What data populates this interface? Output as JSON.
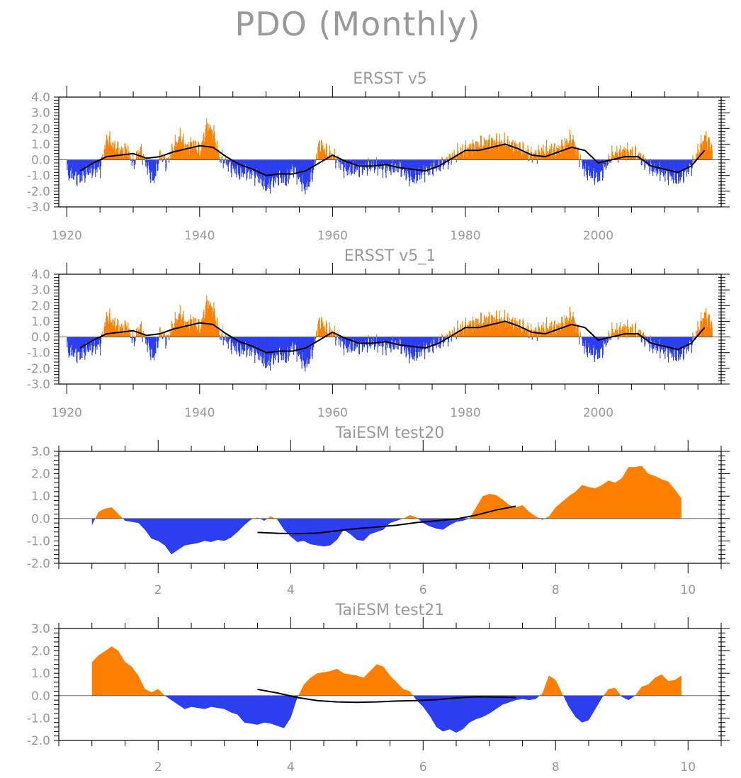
{
  "figure": {
    "title": "PDO (Monthly)",
    "colors": {
      "positive": "#ff8000",
      "negative": "#2b3ff0",
      "line": "#000000",
      "axis": "#000000",
      "text": "#999999"
    }
  },
  "chart_data": [
    {
      "type": "area",
      "title": "ERSST v5",
      "xlim": [
        1918.8,
        2018.5
      ],
      "ylim": [
        -3.0,
        4.0
      ],
      "xticks": [
        1920,
        1940,
        1960,
        1980,
        2000
      ],
      "xtick_labels": [
        "1920",
        "1940",
        "1960",
        "1980",
        "2000"
      ],
      "yticks": [
        -3.0,
        -2.0,
        -1.0,
        0.0,
        1.0,
        2.0,
        3.0,
        4.0
      ],
      "ytick_labels": [
        "-3.0",
        "-2.0",
        "-1.0",
        "0.0",
        "1.0",
        "2.0",
        "3.0",
        "4.0"
      ],
      "bars_anchor": {
        "x": [
          1920,
          1922,
          1923,
          1924,
          1925,
          1926,
          1927,
          1928,
          1929,
          1930,
          1931,
          1932,
          1933,
          1934,
          1935,
          1936,
          1937,
          1938,
          1939,
          1940,
          1941,
          1942,
          1943,
          1944,
          1945,
          1946,
          1947,
          1948,
          1949,
          1950,
          1951,
          1952,
          1953,
          1954,
          1955,
          1956,
          1957,
          1958,
          1959,
          1960,
          1962,
          1964,
          1966,
          1968,
          1970,
          1972,
          1974,
          1976,
          1978,
          1980,
          1982,
          1984,
          1986,
          1988,
          1990,
          1992,
          1994,
          1996,
          1998,
          2000,
          2002,
          2004,
          2006,
          2008,
          2010,
          2012,
          2014,
          2016,
          2018
        ],
        "y": [
          -0.9,
          -1.2,
          -0.8,
          -0.7,
          -0.5,
          1.4,
          0.9,
          0.6,
          0.7,
          -0.3,
          0.7,
          -0.4,
          -1.4,
          0.3,
          -0.2,
          0.8,
          1.5,
          0.8,
          1.1,
          0.5,
          2.2,
          1.8,
          0.1,
          -0.2,
          -0.6,
          -0.9,
          -0.8,
          -0.9,
          -1.2,
          -1.8,
          -1.4,
          -1.1,
          -1.4,
          -0.5,
          -1.3,
          -1.9,
          -0.8,
          1.1,
          0.5,
          0.3,
          -0.7,
          -0.6,
          -0.4,
          -0.6,
          -0.5,
          -1.3,
          -0.7,
          -0.4,
          0.2,
          0.7,
          1.0,
          1.2,
          1.1,
          0.8,
          0.3,
          0.6,
          0.7,
          1.4,
          -0.8,
          -1.2,
          0.3,
          0.6,
          0.3,
          -0.6,
          -0.9,
          -1.3,
          -0.4,
          1.5,
          0.3
        ]
      },
      "smooth": {
        "x": [
          1922,
          1924,
          1926,
          1928,
          1930,
          1932,
          1934,
          1936,
          1938,
          1940,
          1942,
          1944,
          1946,
          1948,
          1950,
          1952,
          1954,
          1956,
          1958,
          1960,
          1962,
          1964,
          1966,
          1968,
          1970,
          1972,
          1974,
          1976,
          1978,
          1980,
          1982,
          1984,
          1986,
          1988,
          1990,
          1992,
          1994,
          1996,
          1998,
          2000,
          2002,
          2004,
          2006,
          2008,
          2010,
          2012,
          2014,
          2016
        ],
        "y": [
          -0.7,
          -0.2,
          0.2,
          0.3,
          0.4,
          0.1,
          0.2,
          0.5,
          0.7,
          0.9,
          0.8,
          0.2,
          -0.3,
          -0.6,
          -1.0,
          -0.9,
          -0.9,
          -0.7,
          -0.2,
          0.3,
          -0.1,
          -0.4,
          -0.4,
          -0.3,
          -0.5,
          -0.6,
          -0.7,
          -0.4,
          0.1,
          0.6,
          0.6,
          0.8,
          1.0,
          0.7,
          0.3,
          0.2,
          0.5,
          0.8,
          0.6,
          -0.2,
          0.0,
          0.2,
          0.2,
          -0.4,
          -0.6,
          -0.8,
          -0.4,
          0.6
        ]
      }
    },
    {
      "type": "area",
      "title": "ERSST v5_1",
      "xlim": [
        1918.8,
        2018.5
      ],
      "ylim": [
        -3.0,
        4.0
      ],
      "xticks": [
        1920,
        1940,
        1960,
        1980,
        2000
      ],
      "xtick_labels": [
        "1920",
        "1940",
        "1960",
        "1980",
        "2000"
      ],
      "yticks": [
        -3.0,
        -2.0,
        -1.0,
        0.0,
        1.0,
        2.0,
        3.0,
        4.0
      ],
      "ytick_labels": [
        "-3.0",
        "-2.0",
        "-1.0",
        "0.0",
        "1.0",
        "2.0",
        "3.0",
        "4.0"
      ],
      "bars_anchor": {
        "x": [
          1920,
          1922,
          1923,
          1924,
          1925,
          1926,
          1927,
          1928,
          1929,
          1930,
          1931,
          1932,
          1933,
          1934,
          1935,
          1936,
          1937,
          1938,
          1939,
          1940,
          1941,
          1942,
          1943,
          1944,
          1945,
          1946,
          1947,
          1948,
          1949,
          1950,
          1951,
          1952,
          1953,
          1954,
          1955,
          1956,
          1957,
          1958,
          1959,
          1960,
          1962,
          1964,
          1966,
          1968,
          1970,
          1972,
          1974,
          1976,
          1978,
          1980,
          1982,
          1984,
          1986,
          1988,
          1990,
          1992,
          1994,
          1996,
          1998,
          2000,
          2002,
          2004,
          2006,
          2008,
          2010,
          2012,
          2014,
          2016,
          2018
        ],
        "y": [
          -0.9,
          -1.2,
          -0.8,
          -0.7,
          -0.5,
          1.4,
          0.9,
          0.6,
          0.7,
          -0.3,
          0.7,
          -0.4,
          -1.4,
          0.3,
          -0.2,
          0.8,
          1.5,
          0.8,
          1.1,
          0.5,
          2.2,
          1.8,
          0.1,
          -0.2,
          -0.6,
          -0.9,
          -0.8,
          -0.9,
          -1.2,
          -1.8,
          -1.4,
          -1.1,
          -1.4,
          -0.5,
          -1.3,
          -1.9,
          -0.8,
          1.1,
          0.5,
          0.3,
          -0.7,
          -0.6,
          -0.4,
          -0.6,
          -0.5,
          -1.3,
          -0.7,
          -0.4,
          0.2,
          0.7,
          1.0,
          1.2,
          1.1,
          0.8,
          0.3,
          0.6,
          0.7,
          1.4,
          -0.8,
          -1.2,
          0.3,
          0.6,
          0.3,
          -0.6,
          -0.9,
          -1.3,
          -0.4,
          1.5,
          0.3
        ]
      },
      "smooth": {
        "x": [
          1922,
          1924,
          1926,
          1928,
          1930,
          1932,
          1934,
          1936,
          1938,
          1940,
          1942,
          1944,
          1946,
          1948,
          1950,
          1952,
          1954,
          1956,
          1958,
          1960,
          1962,
          1964,
          1966,
          1968,
          1970,
          1972,
          1974,
          1976,
          1978,
          1980,
          1982,
          1984,
          1986,
          1988,
          1990,
          1992,
          1994,
          1996,
          1998,
          2000,
          2002,
          2004,
          2006,
          2008,
          2010,
          2012,
          2014,
          2016
        ],
        "y": [
          -0.7,
          -0.2,
          0.2,
          0.3,
          0.4,
          0.1,
          0.2,
          0.5,
          0.7,
          0.9,
          0.8,
          0.2,
          -0.3,
          -0.6,
          -1.0,
          -0.9,
          -0.9,
          -0.7,
          -0.2,
          0.3,
          -0.1,
          -0.4,
          -0.4,
          -0.3,
          -0.5,
          -0.6,
          -0.7,
          -0.4,
          0.1,
          0.6,
          0.6,
          0.8,
          1.0,
          0.7,
          0.3,
          0.2,
          0.5,
          0.8,
          0.6,
          -0.2,
          0.0,
          0.2,
          0.2,
          -0.4,
          -0.6,
          -0.8,
          -0.4,
          0.6
        ]
      }
    },
    {
      "type": "area",
      "title": "TaiESM test20",
      "xlim": [
        0.5,
        10.5
      ],
      "ylim": [
        -2.0,
        3.0
      ],
      "xticks": [
        2,
        4,
        6,
        8,
        10
      ],
      "xtick_labels": [
        "2",
        "4",
        "6",
        "8",
        "10"
      ],
      "yticks": [
        -2.0,
        -1.0,
        0.0,
        1.0,
        2.0,
        3.0
      ],
      "ytick_labels": [
        "-2.0",
        "-1.0",
        "0.0",
        "1.0",
        "2.0",
        "3.0"
      ],
      "x": [
        1.0,
        1.1,
        1.2,
        1.3,
        1.4,
        1.5,
        1.6,
        1.7,
        1.8,
        1.9,
        2.0,
        2.1,
        2.2,
        2.3,
        2.4,
        2.5,
        2.6,
        2.7,
        2.8,
        2.9,
        3.0,
        3.1,
        3.2,
        3.3,
        3.4,
        3.5,
        3.6,
        3.7,
        3.8,
        3.9,
        4.0,
        4.1,
        4.2,
        4.3,
        4.4,
        4.5,
        4.6,
        4.7,
        4.8,
        4.9,
        5.0,
        5.1,
        5.2,
        5.3,
        5.4,
        5.5,
        5.6,
        5.7,
        5.8,
        5.9,
        6.0,
        6.1,
        6.2,
        6.3,
        6.4,
        6.5,
        6.6,
        6.7,
        6.8,
        6.9,
        7.0,
        7.1,
        7.2,
        7.3,
        7.4,
        7.5,
        7.6,
        7.7,
        7.8,
        7.9,
        8.0,
        8.1,
        8.2,
        8.3,
        8.4,
        8.5,
        8.6,
        8.7,
        8.8,
        8.9,
        9.0,
        9.1,
        9.2,
        9.3,
        9.4,
        9.5,
        9.6,
        9.7,
        9.8,
        9.9
      ],
      "y": [
        -0.3,
        0.3,
        0.45,
        0.5,
        0.2,
        -0.1,
        -0.15,
        -0.2,
        -0.5,
        -0.9,
        -1.0,
        -1.2,
        -1.6,
        -1.4,
        -1.2,
        -1.15,
        -1.1,
        -1.0,
        -1.05,
        -0.95,
        -1.0,
        -0.85,
        -0.6,
        -0.3,
        -0.05,
        0.05,
        -0.1,
        0.1,
        -0.05,
        -0.5,
        -0.8,
        -1.05,
        -1.0,
        -1.15,
        -1.2,
        -1.25,
        -1.2,
        -0.95,
        -0.5,
        -0.7,
        -0.95,
        -1.0,
        -0.7,
        -0.6,
        -0.5,
        -0.2,
        -0.1,
        0.0,
        0.15,
        0.05,
        -0.2,
        -0.35,
        -0.45,
        -0.5,
        -0.3,
        -0.15,
        -0.1,
        0.0,
        0.5,
        1.0,
        1.1,
        1.05,
        0.85,
        0.6,
        0.5,
        0.6,
        0.3,
        0.1,
        -0.05,
        0.1,
        0.5,
        0.75,
        1.0,
        1.2,
        1.5,
        1.4,
        1.35,
        1.5,
        1.7,
        1.6,
        1.8,
        2.3,
        2.3,
        2.35,
        2.0,
        1.9,
        1.75,
        1.65,
        1.3,
        0.9
      ],
      "smooth": {
        "x": [
          3.5,
          3.8,
          4.1,
          4.4,
          4.7,
          5.0,
          5.3,
          5.6,
          5.9,
          6.2,
          6.5,
          6.8,
          7.1,
          7.4
        ],
        "y": [
          -0.62,
          -0.66,
          -0.68,
          -0.65,
          -0.55,
          -0.45,
          -0.38,
          -0.3,
          -0.18,
          -0.1,
          -0.02,
          0.15,
          0.38,
          0.55
        ]
      }
    },
    {
      "type": "area",
      "title": "TaiESM test21",
      "xlim": [
        0.5,
        10.5
      ],
      "ylim": [
        -2.0,
        3.0
      ],
      "xticks": [
        2,
        4,
        6,
        8,
        10
      ],
      "xtick_labels": [
        "2",
        "4",
        "6",
        "8",
        "10"
      ],
      "yticks": [
        -2.0,
        -1.0,
        0.0,
        1.0,
        2.0,
        3.0
      ],
      "ytick_labels": [
        "-2.0",
        "-1.0",
        "0.0",
        "1.0",
        "2.0",
        "3.0"
      ],
      "x": [
        1.0,
        1.1,
        1.2,
        1.3,
        1.4,
        1.5,
        1.6,
        1.7,
        1.8,
        1.9,
        2.0,
        2.1,
        2.2,
        2.3,
        2.4,
        2.5,
        2.6,
        2.7,
        2.8,
        2.9,
        3.0,
        3.1,
        3.2,
        3.3,
        3.4,
        3.5,
        3.6,
        3.7,
        3.8,
        3.9,
        4.0,
        4.1,
        4.2,
        4.3,
        4.4,
        4.5,
        4.6,
        4.7,
        4.8,
        4.9,
        5.0,
        5.1,
        5.2,
        5.3,
        5.4,
        5.5,
        5.6,
        5.7,
        5.8,
        5.9,
        6.0,
        6.1,
        6.2,
        6.3,
        6.4,
        6.5,
        6.6,
        6.7,
        6.8,
        6.9,
        7.0,
        7.1,
        7.2,
        7.3,
        7.4,
        7.5,
        7.6,
        7.7,
        7.8,
        7.9,
        8.0,
        8.1,
        8.2,
        8.3,
        8.4,
        8.5,
        8.6,
        8.7,
        8.8,
        8.9,
        9.0,
        9.1,
        9.2,
        9.3,
        9.4,
        9.5,
        9.6,
        9.7,
        9.8,
        9.9
      ],
      "y": [
        1.5,
        1.8,
        2.0,
        2.2,
        2.0,
        1.5,
        1.3,
        0.9,
        0.3,
        0.15,
        0.3,
        0.0,
        -0.2,
        -0.4,
        -0.6,
        -0.5,
        -0.55,
        -0.6,
        -0.5,
        -0.55,
        -0.6,
        -0.75,
        -0.85,
        -1.2,
        -1.25,
        -1.3,
        -1.2,
        -1.25,
        -1.35,
        -1.45,
        -1.0,
        -0.1,
        0.5,
        0.8,
        1.0,
        1.05,
        1.1,
        1.2,
        1.0,
        0.95,
        0.9,
        0.8,
        1.1,
        1.4,
        1.3,
        0.9,
        0.6,
        0.3,
        0.2,
        -0.2,
        -0.5,
        -0.9,
        -1.4,
        -1.6,
        -1.5,
        -1.65,
        -1.5,
        -1.2,
        -1.05,
        -0.95,
        -0.8,
        -0.6,
        -0.4,
        -0.3,
        -0.2,
        -0.15,
        -0.2,
        -0.15,
        0.1,
        0.9,
        0.7,
        0.1,
        -0.5,
        -0.95,
        -1.2,
        -1.1,
        -0.6,
        -0.1,
        0.3,
        0.35,
        -0.05,
        -0.2,
        0.0,
        0.4,
        0.5,
        0.8,
        0.95,
        0.65,
        0.7,
        0.9
      ],
      "smooth": {
        "x": [
          3.5,
          3.8,
          4.1,
          4.4,
          4.7,
          5.0,
          5.3,
          5.6,
          5.9,
          6.2,
          6.5,
          6.8,
          7.1,
          7.4
        ],
        "y": [
          0.28,
          0.12,
          -0.08,
          -0.22,
          -0.28,
          -0.3,
          -0.28,
          -0.24,
          -0.22,
          -0.18,
          -0.1,
          -0.05,
          -0.06,
          -0.08
        ]
      }
    }
  ]
}
